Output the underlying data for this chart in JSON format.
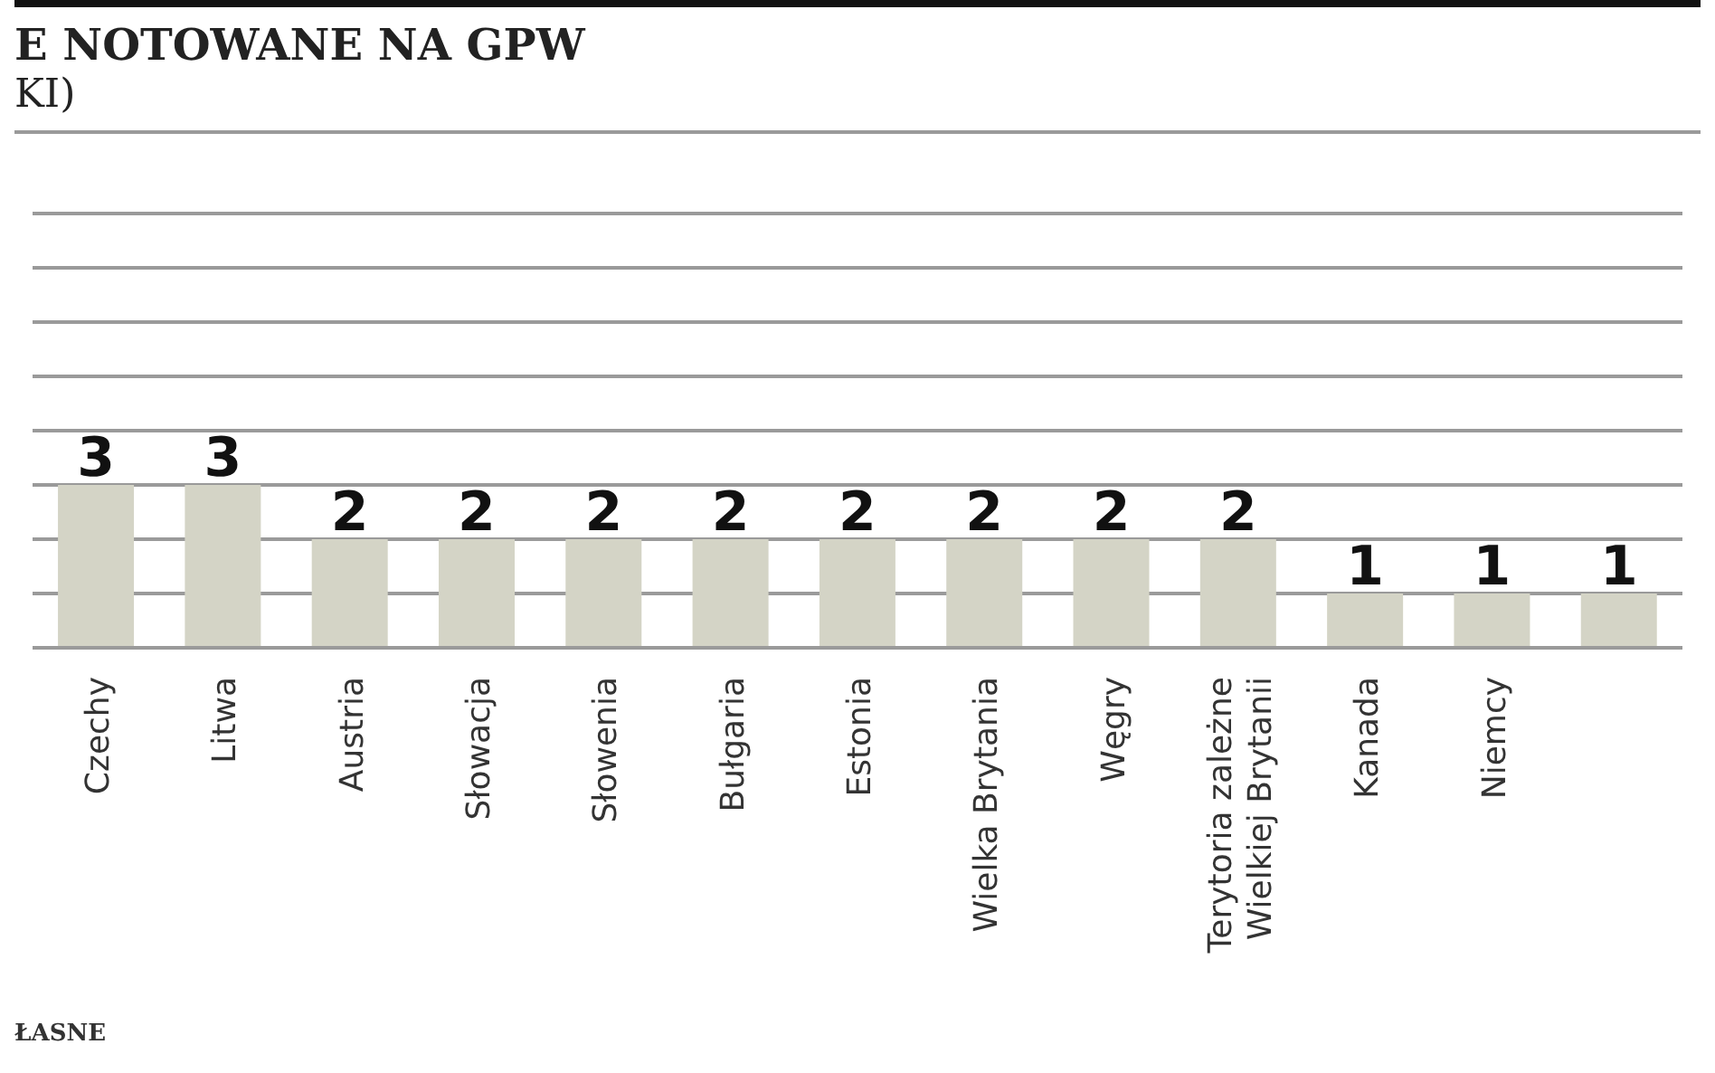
{
  "chart_data": {
    "type": "bar",
    "title": "E NOTOWANE NA GPW",
    "subtitle": "KI)",
    "annotations": [
      "ŁASNE"
    ],
    "categories": [
      "Czechy",
      "Litwa",
      "Austria",
      "Słowacja",
      "Słowenia",
      "Bułgaria",
      "Estonia",
      "Wielka Brytania",
      "Węgry",
      "Terytoria zależne Wielkiej Brytanii",
      "Kanada",
      "Niemcy",
      null
    ],
    "values": [
      3,
      3,
      2,
      2,
      2,
      2,
      2,
      2,
      2,
      2,
      1,
      1,
      1
    ],
    "color": "#d4d4c6",
    "ylim": [
      0,
      8
    ],
    "grid": "y",
    "data_labels": true,
    "tick_labels": "x"
  }
}
